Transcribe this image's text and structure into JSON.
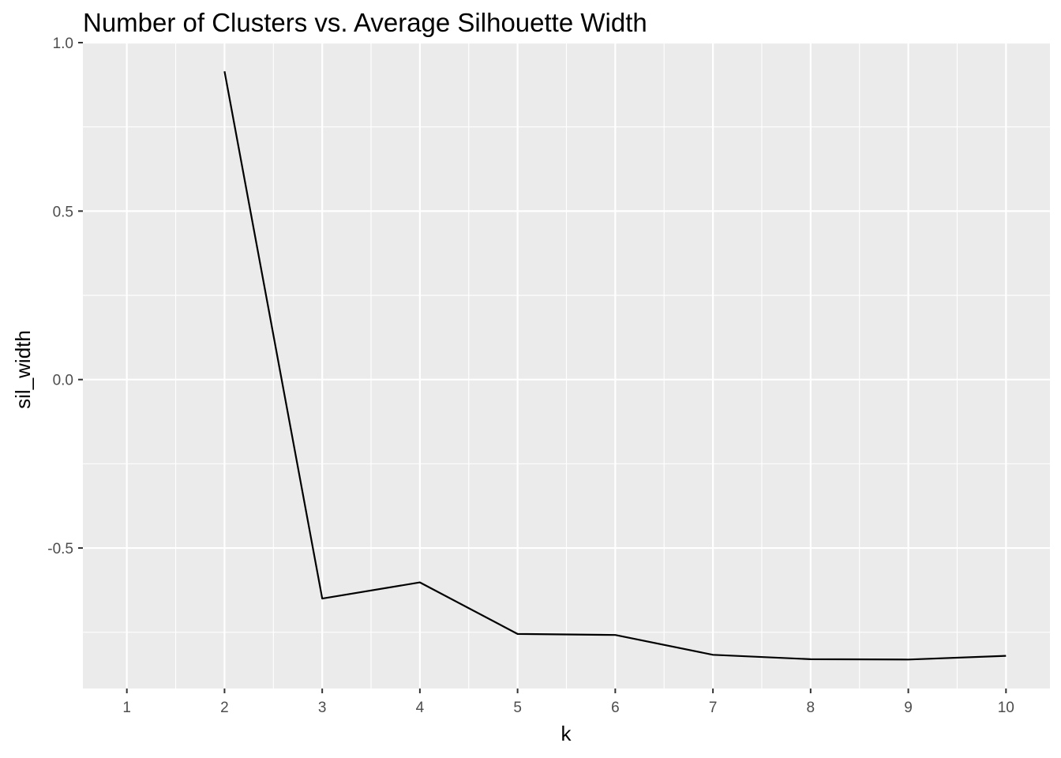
{
  "chart_data": {
    "type": "line",
    "title": "Number of Clusters vs. Average Silhouette Width",
    "xlabel": "k",
    "ylabel": "sil_width",
    "x_ticks": [
      "1",
      "2",
      "3",
      "4",
      "5",
      "6",
      "7",
      "8",
      "9",
      "10"
    ],
    "y_ticks": [
      "-0.5",
      "0.0",
      "0.5",
      "1.0"
    ],
    "x_tick_values": [
      1,
      2,
      3,
      4,
      5,
      6,
      7,
      8,
      9,
      10
    ],
    "y_tick_values": [
      -0.5,
      0.0,
      0.5,
      1.0
    ],
    "xlim": [
      0.55,
      10.45
    ],
    "ylim": [
      -0.917,
      1.0
    ],
    "grid": true,
    "series": [
      {
        "x": [
          2,
          3,
          4,
          5,
          6,
          7,
          8,
          9,
          10
        ],
        "y": [
          0.915,
          -0.65,
          -0.602,
          -0.755,
          -0.758,
          -0.817,
          -0.83,
          -0.831,
          -0.82
        ]
      }
    ],
    "colors": {
      "panel": "#ebebeb",
      "grid": "#ffffff",
      "line": "#000000",
      "tick_text": "#4d4d4d"
    }
  }
}
